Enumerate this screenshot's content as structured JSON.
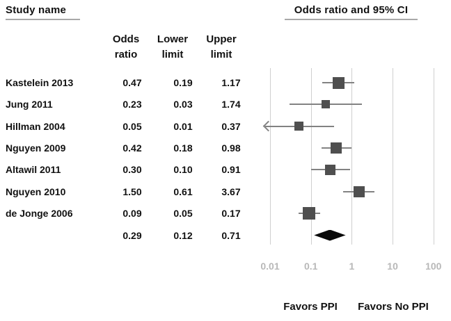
{
  "title_left": "Study name",
  "title_right": "Odds ratio and 95% CI",
  "columns": [
    {
      "line1": "Odds",
      "line2": "ratio"
    },
    {
      "line1": "Lower",
      "line2": "limit"
    },
    {
      "line1": "Upper",
      "line2": "limit"
    }
  ],
  "chart_data": {
    "type": "forest",
    "title": "Odds ratio and 95% CI",
    "axis": {
      "scale": "log",
      "min": 0.01,
      "max": 100,
      "ticks": [
        0.01,
        0.1,
        1,
        10,
        100
      ],
      "tick_labels": [
        "0.01",
        "0.1",
        "1",
        "10",
        "100"
      ],
      "grid": true
    },
    "studies": [
      {
        "name": "Kastelein 2013",
        "odds_ratio": 0.47,
        "lower": 0.19,
        "upper": 1.17,
        "display": {
          "or": "0.47",
          "lower": "0.19",
          "upper": "1.17"
        },
        "marker_size": 17,
        "arrow_left": false
      },
      {
        "name": "Jung 2011",
        "odds_ratio": 0.23,
        "lower": 0.03,
        "upper": 1.74,
        "display": {
          "or": "0.23",
          "lower": "0.03",
          "upper": "1.74"
        },
        "marker_size": 12,
        "arrow_left": false
      },
      {
        "name": "Hillman 2004",
        "odds_ratio": 0.05,
        "lower": 0.01,
        "upper": 0.37,
        "display": {
          "or": "0.05",
          "lower": "0.01",
          "upper": "0.37"
        },
        "marker_size": 13,
        "arrow_left": true
      },
      {
        "name": "Nguyen 2009",
        "odds_ratio": 0.42,
        "lower": 0.18,
        "upper": 0.98,
        "display": {
          "or": "0.42",
          "lower": "0.18",
          "upper": "0.98"
        },
        "marker_size": 16,
        "arrow_left": false
      },
      {
        "name": "Altawil 2011",
        "odds_ratio": 0.3,
        "lower": 0.1,
        "upper": 0.91,
        "display": {
          "or": "0.30",
          "lower": "0.10",
          "upper": "0.91"
        },
        "marker_size": 15,
        "arrow_left": false
      },
      {
        "name": "Nguyen 2010",
        "odds_ratio": 1.5,
        "lower": 0.61,
        "upper": 3.67,
        "display": {
          "or": "1.50",
          "lower": "0.61",
          "upper": "3.67"
        },
        "marker_size": 16,
        "arrow_left": false
      },
      {
        "name": "de Jonge 2006",
        "odds_ratio": 0.09,
        "lower": 0.05,
        "upper": 0.17,
        "display": {
          "or": "0.09",
          "lower": "0.05",
          "upper": "0.17"
        },
        "marker_size": 18,
        "arrow_left": false
      }
    ],
    "summary": {
      "odds_ratio": 0.29,
      "lower": 0.12,
      "upper": 0.71,
      "display": {
        "or": "0.29",
        "lower": "0.12",
        "upper": "0.71"
      }
    },
    "footer_labels": {
      "left": "Favors PPI",
      "right": "Favors No PPI"
    },
    "colors": {
      "marker": "#4f4f4f",
      "ci_line": "#828282",
      "gridline": "#cfcfcf",
      "tick_label": "#b8b8b8",
      "diamond": "#0a0a0a",
      "text": "#111111",
      "underline": "#a8a8a8"
    }
  }
}
